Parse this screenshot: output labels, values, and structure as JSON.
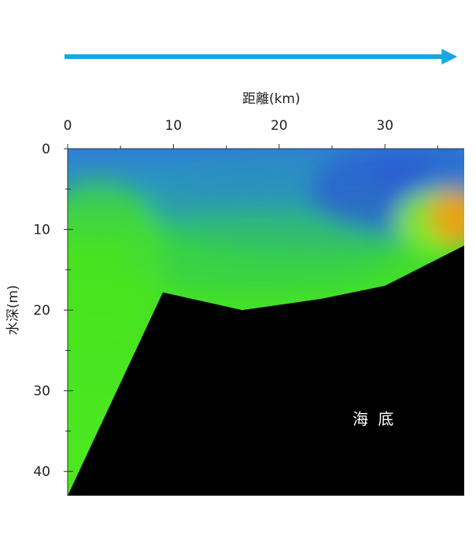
{
  "chart_data": {
    "type": "heatmap",
    "title": "",
    "xlabel": "距離(km)",
    "ylabel": "水深(m)",
    "x_axis_position": "top",
    "y_axis_direction": "downward",
    "xlim": [
      0,
      37.5
    ],
    "ylim": [
      0,
      43
    ],
    "x_ticks": [
      0,
      10,
      20,
      30
    ],
    "y_ticks": [
      0,
      10,
      20,
      30,
      40
    ],
    "direction_arrow": {
      "from_km": 0,
      "to_km": 37,
      "color": "#1aa6e4"
    },
    "seabed": {
      "label": "海 底",
      "label_position": {
        "km": 29,
        "depth": 33.5
      },
      "color": "#000000",
      "profile": [
        {
          "km": 0,
          "depth": 43
        },
        {
          "km": 9,
          "depth": 17.8
        },
        {
          "km": 16.5,
          "depth": 20
        },
        {
          "km": 24,
          "depth": 18.6
        },
        {
          "km": 30,
          "depth": 17
        },
        {
          "km": 37.5,
          "depth": 12
        }
      ]
    },
    "color_scale": [
      "#2a55d6",
      "#1e8cc8",
      "#2aae8c",
      "#33cc33",
      "#4ee81c",
      "#8ef020",
      "#e8d020",
      "#f39c12"
    ],
    "field_blobs": [
      {
        "km": 23,
        "depth": 7,
        "rx": 15,
        "ry": 6,
        "color": "#2c8cc0",
        "opacity": 0.55
      },
      {
        "km": 29,
        "depth": 5,
        "rx": 6,
        "ry": 5,
        "color": "#2a55d6",
        "opacity": 0.65
      },
      {
        "km": 34,
        "depth": 2.5,
        "rx": 5,
        "ry": 3.5,
        "color": "#2a5ad6",
        "opacity": 0.55
      },
      {
        "km": 18,
        "depth": 13,
        "rx": 13,
        "ry": 4.5,
        "color": "#33cc55",
        "opacity": 0.6
      },
      {
        "km": 35,
        "depth": 9,
        "rx": 4,
        "ry": 4,
        "color": "#8ef020",
        "opacity": 0.85
      },
      {
        "km": 36.8,
        "depth": 8.5,
        "rx": 2.5,
        "ry": 3.5,
        "color": "#f39c12",
        "opacity": 0.9
      },
      {
        "km": 3,
        "depth": 14,
        "rx": 6,
        "ry": 10,
        "color": "#4ee81c",
        "opacity": 0.5
      }
    ]
  }
}
